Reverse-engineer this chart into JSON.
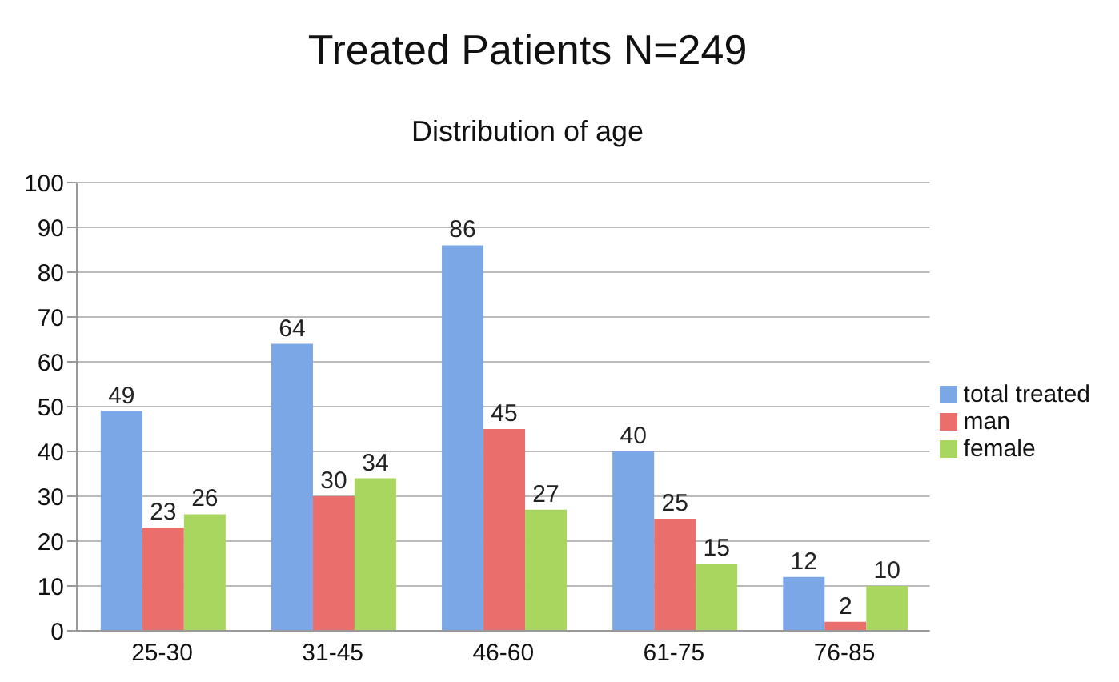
{
  "chart_data": {
    "type": "bar",
    "title": "Treated Patients N=249",
    "subtitle": "Distribution of age",
    "categories": [
      "25-30",
      "31-45",
      "46-60",
      "61-75",
      "76-85"
    ],
    "series": [
      {
        "name": "total treated",
        "color": "#7ba7e6",
        "values": [
          49,
          64,
          86,
          40,
          12
        ]
      },
      {
        "name": "man",
        "color": "#ea6f6c",
        "values": [
          23,
          30,
          45,
          25,
          2
        ]
      },
      {
        "name": "female",
        "color": "#a9d65e",
        "values": [
          26,
          34,
          27,
          15,
          10
        ]
      }
    ],
    "ylim": [
      0,
      100
    ],
    "yticks": [
      0,
      10,
      20,
      30,
      40,
      50,
      60,
      70,
      80,
      90,
      100
    ],
    "grid": "y",
    "legend": "right",
    "data_labels": true
  }
}
